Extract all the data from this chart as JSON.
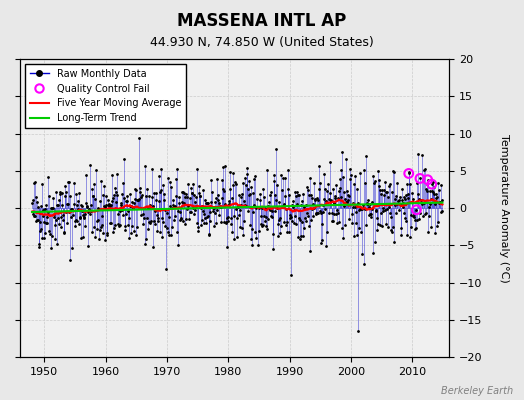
{
  "title": "MASSENA INTL AP",
  "subtitle": "44.930 N, 74.850 W (United States)",
  "ylabel": "Temperature Anomaly (°C)",
  "watermark": "Berkeley Earth",
  "ylim": [
    -20,
    20
  ],
  "xlim": [
    1946,
    2016
  ],
  "yticks": [
    -20,
    -15,
    -10,
    -5,
    0,
    5,
    10,
    15,
    20
  ],
  "xticks": [
    1950,
    1960,
    1970,
    1980,
    1990,
    2000,
    2010
  ],
  "bg_color": "#e8e8e8",
  "plot_bg_color": "#f0f0f0",
  "grid_color": "#cccccc",
  "line_color": "#0000cc",
  "marker_color": "#000000",
  "qc_fail_color": "#ff00ff",
  "moving_avg_color": "#ff0000",
  "trend_color": "#00cc00",
  "seed": 42,
  "n_years": 67,
  "start_year": 1948
}
